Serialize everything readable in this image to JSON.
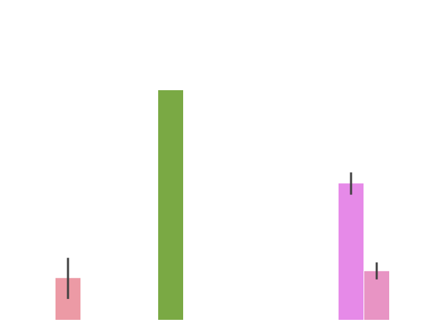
{
  "chart_data": {
    "type": "bar",
    "title": "",
    "xlabel": "",
    "ylabel": "",
    "axes_visible": false,
    "grid": false,
    "legend": "none",
    "ylim": [
      0,
      100
    ],
    "bars": [
      {
        "value": 18.2,
        "err_low": 9.1,
        "err_high": 27.0,
        "color": "#ec9aa5"
      },
      {
        "value": 100,
        "err_low": null,
        "err_high": null,
        "color": "#7aa944"
      },
      {
        "value": 59.4,
        "err_low": 54.5,
        "err_high": 64.2,
        "color": "#e68ae8"
      },
      {
        "value": 21.2,
        "err_low": 17.6,
        "err_high": 25.0,
        "color": "#e894c4"
      }
    ],
    "error_bar_color": "#404040"
  }
}
